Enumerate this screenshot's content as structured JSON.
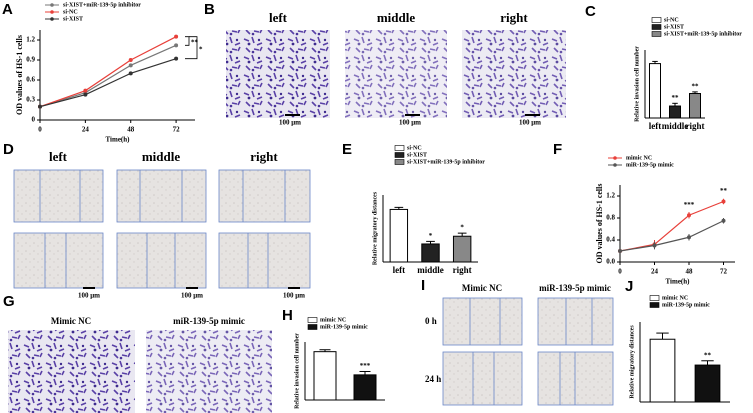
{
  "panels": [
    "A",
    "B",
    "C",
    "D",
    "E",
    "F",
    "G",
    "H",
    "I",
    "J"
  ],
  "images": {
    "B": {
      "labels": [
        "left",
        "middle",
        "right"
      ],
      "scale": "100 μm"
    },
    "D": {
      "labels": [
        "left",
        "middle",
        "right"
      ],
      "scale": "100 μm"
    },
    "G": {
      "labels": [
        "Mimic NC",
        "miR-139-5p mimic"
      ]
    },
    "I": {
      "columns": [
        "Mimic NC",
        "miR-139-5p mimic"
      ],
      "rows": [
        "0 h",
        "24 h"
      ]
    }
  },
  "chart_data": [
    {
      "type": "line",
      "ylabel": "OD values of HS-1 cells",
      "xlabel": "Time(h)",
      "x": [
        0,
        24,
        48,
        72
      ],
      "xlim": [
        0,
        82
      ],
      "xticks": [
        0,
        24,
        48,
        72
      ],
      "ylim": [
        0,
        1.35
      ],
      "yticks": [
        0,
        0.3,
        0.6,
        0.9,
        1.2
      ],
      "series": [
        {
          "name": "si-XIST+miR-139-5p inhibitor",
          "color": "#777777",
          "values": [
            0.2,
            0.41,
            0.82,
            1.12
          ]
        },
        {
          "name": "si-NC",
          "color": "#e8403a",
          "values": [
            0.2,
            0.44,
            0.9,
            1.25
          ]
        },
        {
          "name": "si-XIST",
          "color": "#333333",
          "values": [
            0.2,
            0.38,
            0.7,
            0.92
          ]
        }
      ],
      "annotations": [
        "**",
        "*"
      ]
    },
    {
      "type": "bar",
      "ylabel": "Relative invasion cell number",
      "categories": [
        "left",
        "middle",
        "right"
      ],
      "values": [
        1.0,
        0.22,
        0.45
      ],
      "errors": [
        0.04,
        0.05,
        0.03
      ],
      "colors": [
        "#ffffff",
        "#222222",
        "#888888"
      ],
      "ylim": [
        0,
        1.25
      ],
      "legend": [
        "si-NC",
        "si-XIST",
        "si-XIST+miR-139-5p inhibitor"
      ],
      "annotations": [
        "**",
        "**"
      ]
    },
    {
      "type": "bar",
      "ylabel": "Relative migratory distances",
      "categories": [
        "left",
        "middle",
        "right"
      ],
      "values": [
        1.02,
        0.35,
        0.5
      ],
      "errors": [
        0.04,
        0.05,
        0.06
      ],
      "colors": [
        "#ffffff",
        "#222222",
        "#888888"
      ],
      "ylim": [
        0,
        1.3
      ],
      "legend": [
        "si-NC",
        "si-XIST",
        "si-XIST+miR-139-5p inhibitor"
      ],
      "annotations": [
        "*",
        "*"
      ]
    },
    {
      "type": "line",
      "ylabel": "OD values of HS-1 cells",
      "xlabel": "Time(h)",
      "x": [
        0,
        24,
        48,
        72
      ],
      "xlim": [
        0,
        80
      ],
      "xticks": [
        0,
        24,
        48,
        72
      ],
      "ylim": [
        0,
        1.4
      ],
      "yticks": [
        {
          "value": 0,
          "label": "0.0"
        },
        0.4,
        0.8,
        1.2
      ],
      "series": [
        {
          "name": "mimic NC",
          "color": "#e8403a",
          "values": [
            0.2,
            0.32,
            0.85,
            1.1
          ],
          "errors": [
            0.02,
            0.08,
            0.06,
            0.05
          ]
        },
        {
          "name": "miR-139-5p mimic",
          "color": "#555555",
          "values": [
            0.2,
            0.3,
            0.45,
            0.75
          ],
          "errors": [
            0.02,
            0.07,
            0.06,
            0.05
          ]
        }
      ],
      "annotations": [
        "***",
        "**"
      ]
    },
    {
      "type": "bar",
      "ylabel": "Relative invasion cell number",
      "values": [
        1.0,
        0.52
      ],
      "errors": [
        0.04,
        0.07
      ],
      "colors": [
        "#ffffff",
        "#111111"
      ],
      "ylim": [
        0,
        1.2
      ],
      "legend": [
        "mimic NC",
        "miR-139-5p mimic"
      ],
      "annotations": [
        "***"
      ]
    },
    {
      "type": "bar",
      "ylabel": "Relative migratory distances",
      "values": [
        1.02,
        0.6
      ],
      "errors": [
        0.1,
        0.07
      ],
      "colors": [
        "#ffffff",
        "#111111"
      ],
      "ylim": [
        0,
        1.3
      ],
      "legend": [
        "mimic NC",
        "miR-139-5p mimic"
      ],
      "annotations": [
        "**"
      ]
    }
  ]
}
